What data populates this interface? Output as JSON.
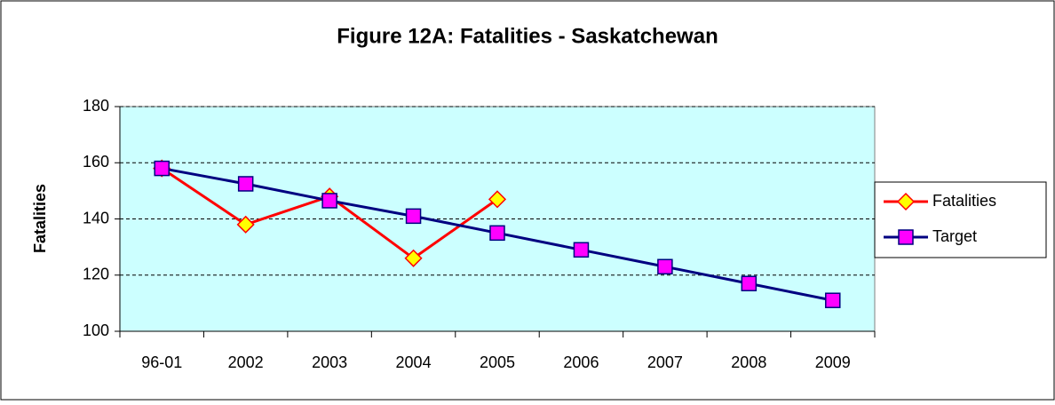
{
  "chart_data": {
    "type": "line",
    "title": "Figure 12A: Fatalities - Saskatchewan",
    "y_label": "Fatalities",
    "categories": [
      "96-01",
      "2002",
      "2003",
      "2004",
      "2005",
      "2006",
      "2007",
      "2008",
      "2009"
    ],
    "series": [
      {
        "name": "Fatalities",
        "color": "#ff0000",
        "marker_color": "#ffff00",
        "marker": "diamond",
        "values": [
          158,
          138,
          148,
          126,
          147,
          null,
          null,
          null,
          null
        ]
      },
      {
        "name": "Target",
        "color": "#000080",
        "marker_color": "#ff00ff",
        "marker": "square",
        "values": [
          158,
          152.5,
          146.5,
          141,
          135,
          129,
          123,
          117,
          111
        ]
      }
    ],
    "ylim": [
      100,
      180
    ],
    "yticks": [
      100,
      120,
      140,
      160,
      180
    ],
    "grid": true,
    "legend": "right",
    "plot_bg": "#ccffff"
  }
}
